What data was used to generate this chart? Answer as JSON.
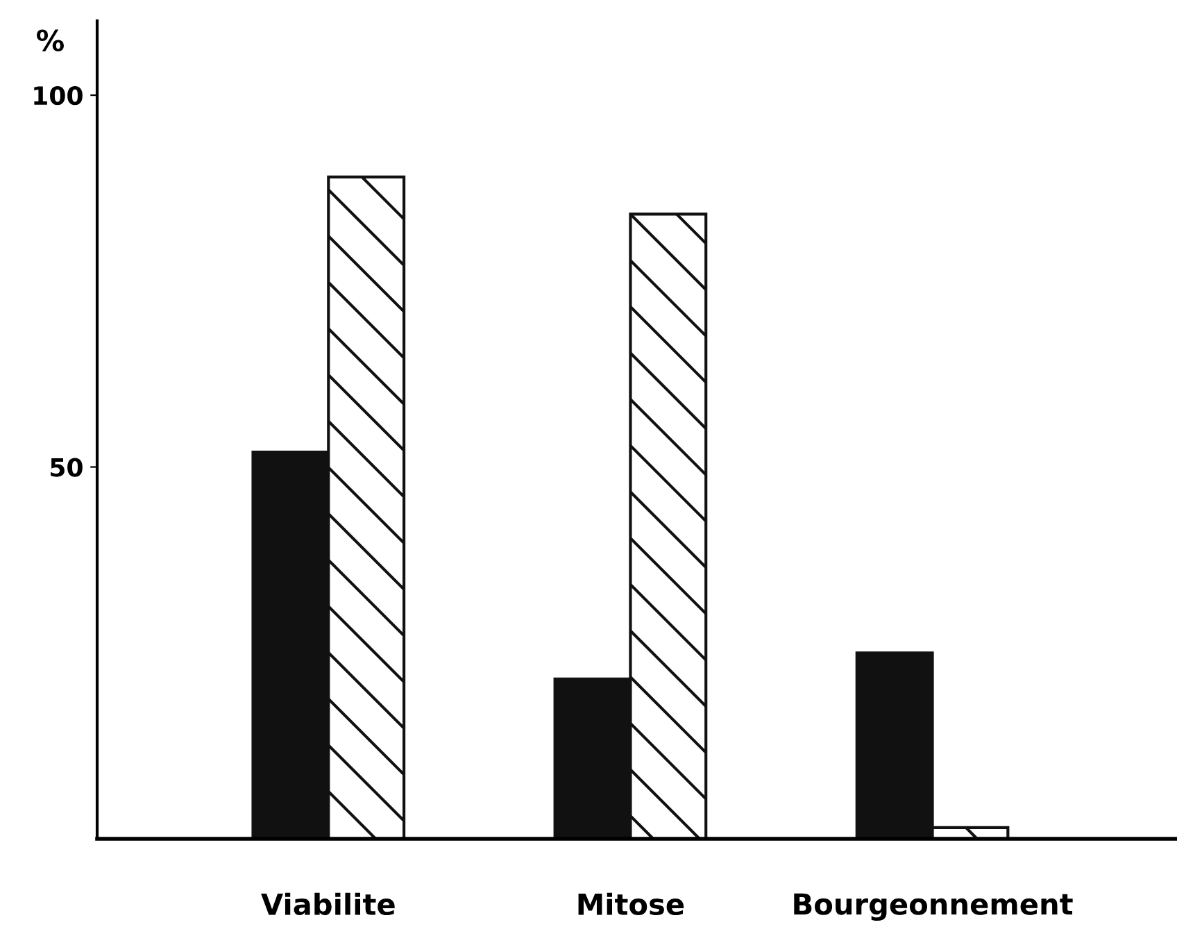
{
  "chart_data": {
    "type": "bar",
    "ylabel": "%",
    "categories": [
      "Viabilite",
      "Mitose",
      "Bourgeonnement"
    ],
    "series": [
      {
        "color": "#111111",
        "values": [
          52,
          21.5,
          25
        ]
      },
      {
        "color": "#ffffff",
        "values": [
          89,
          84,
          1.5
        ]
      }
    ],
    "ylim": [
      0,
      110
    ],
    "yticks": [
      50,
      100
    ],
    "grid": false,
    "legend": false
  }
}
